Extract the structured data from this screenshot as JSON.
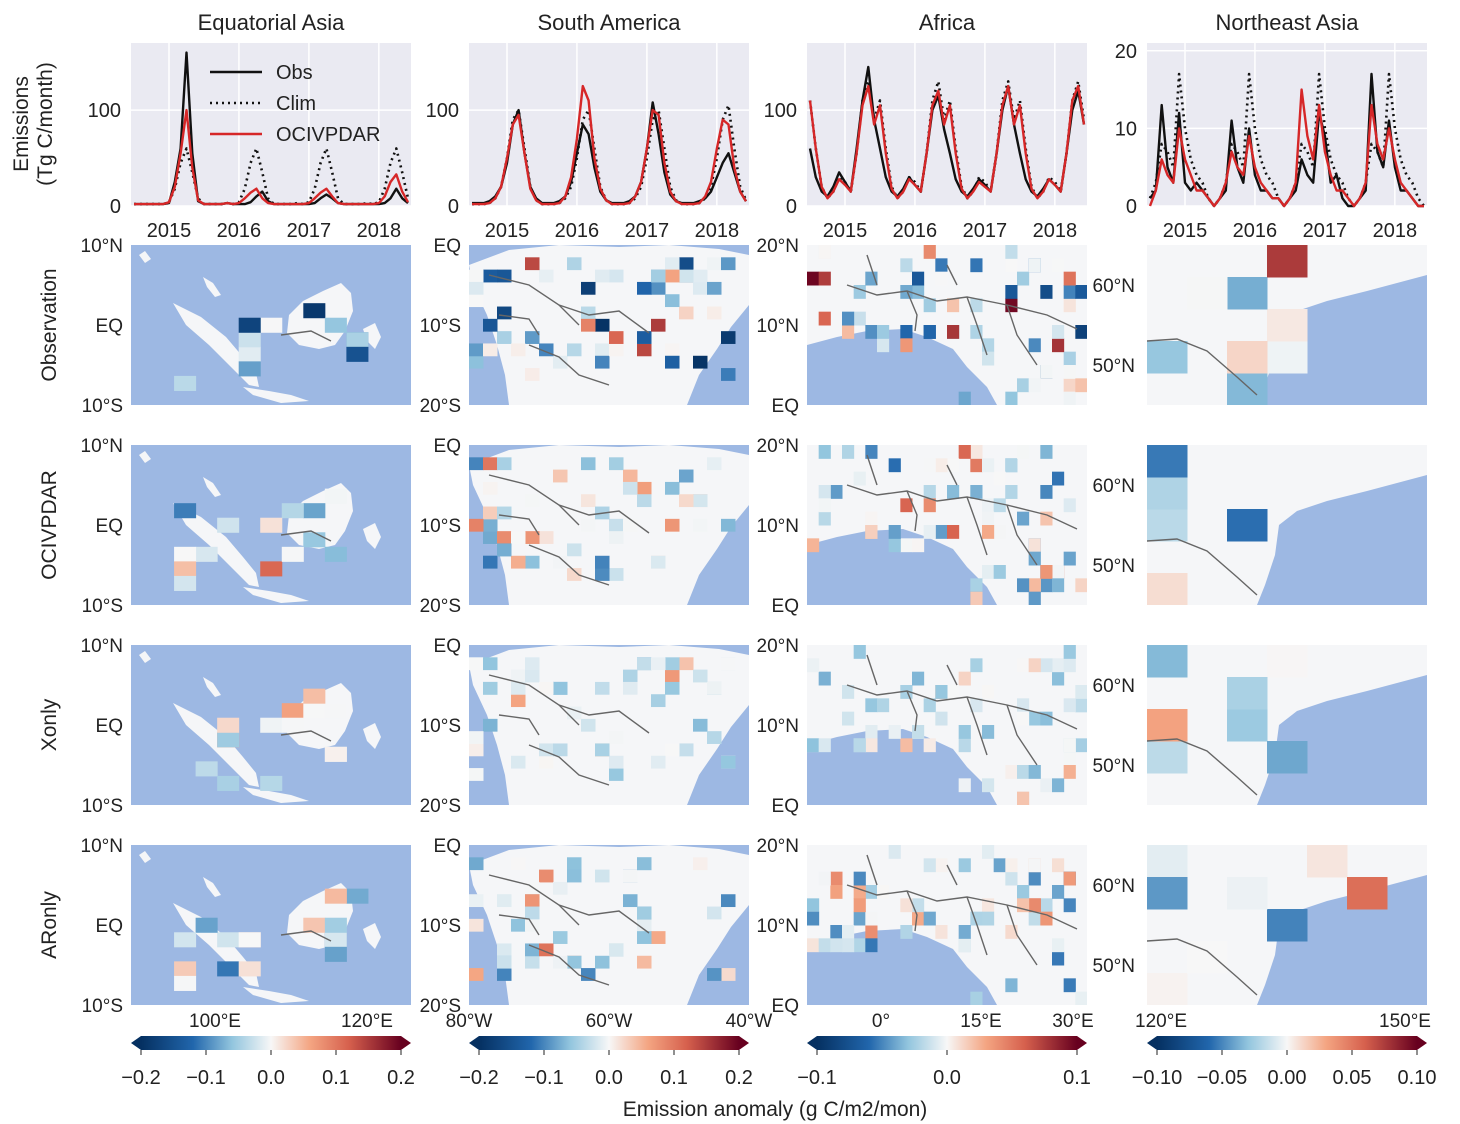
{
  "chart_data": {
    "type": "line",
    "panels": [
      {
        "title": "Equatorial Asia",
        "ylabel": "Emissions\n(Tg C/month)",
        "yticks": [
          0,
          100
        ],
        "ylim": [
          0,
          170
        ],
        "xticks": [
          "2015",
          "2016",
          "2017",
          "2018"
        ],
        "legend": "top-left",
        "series": [
          {
            "name": "Obs",
            "color": "#111111",
            "style": "solid",
            "values": [
              2,
              2,
              2,
              2,
              2,
              2,
              3,
              25,
              60,
              160,
              55,
              5,
              2,
              2,
              2,
              2,
              3,
              2,
              2,
              2,
              4,
              10,
              15,
              5,
              2,
              2,
              2,
              2,
              2,
              2,
              2,
              3,
              8,
              12,
              8,
              3,
              2,
              2,
              2,
              2,
              2,
              2,
              2,
              3,
              8,
              18,
              8,
              3
            ]
          },
          {
            "name": "Clim",
            "color": "#111111",
            "style": "dotted",
            "values": [
              2,
              2,
              2,
              2,
              2,
              2,
              4,
              18,
              45,
              60,
              35,
              8,
              2,
              2,
              2,
              2,
              3,
              2,
              4,
              18,
              45,
              60,
              35,
              8,
              2,
              2,
              2,
              2,
              3,
              2,
              4,
              18,
              45,
              60,
              35,
              8,
              2,
              2,
              2,
              2,
              3,
              2,
              4,
              18,
              45,
              60,
              35,
              8
            ]
          },
          {
            "name": "OCIVPDAR",
            "color": "#d62728",
            "style": "solid",
            "values": [
              2,
              2,
              2,
              2,
              2,
              2,
              4,
              20,
              55,
              100,
              40,
              6,
              2,
              2,
              2,
              2,
              3,
              2,
              3,
              8,
              14,
              18,
              8,
              3,
              2,
              2,
              2,
              2,
              2,
              2,
              3,
              8,
              14,
              18,
              10,
              3,
              2,
              2,
              2,
              2,
              2,
              2,
              3,
              10,
              25,
              33,
              15,
              4
            ]
          }
        ]
      },
      {
        "title": "South America",
        "ylabel": "",
        "yticks": [
          0,
          100
        ],
        "ylim": [
          0,
          170
        ],
        "xticks": [
          "2015",
          "2016",
          "2017",
          "2018"
        ],
        "legend": "",
        "series": [
          {
            "name": "",
            "color": "#111111",
            "style": "solid",
            "values": [
              3,
              3,
              3,
              5,
              10,
              20,
              45,
              85,
              100,
              55,
              20,
              8,
              3,
              3,
              3,
              5,
              10,
              25,
              55,
              85,
              75,
              40,
              15,
              6,
              3,
              3,
              3,
              5,
              10,
              25,
              60,
              108,
              75,
              35,
              12,
              5,
              3,
              3,
              3,
              5,
              8,
              15,
              30,
              45,
              55,
              35,
              15,
              5
            ]
          },
          {
            "name": "",
            "color": "#111111",
            "style": "dotted",
            "values": [
              2,
              2,
              2,
              3,
              8,
              20,
              50,
              90,
              100,
              60,
              20,
              6,
              2,
              2,
              2,
              3,
              8,
              20,
              50,
              90,
              100,
              60,
              20,
              6,
              2,
              2,
              2,
              3,
              8,
              20,
              50,
              90,
              100,
              60,
              20,
              6,
              2,
              2,
              2,
              3,
              8,
              20,
              50,
              90,
              105,
              60,
              20,
              6
            ]
          },
          {
            "name": "",
            "color": "#d62728",
            "style": "solid",
            "values": [
              2,
              2,
              2,
              3,
              8,
              20,
              50,
              85,
              95,
              55,
              18,
              6,
              2,
              2,
              2,
              3,
              10,
              30,
              70,
              125,
              110,
              50,
              18,
              6,
              2,
              2,
              2,
              3,
              10,
              25,
              60,
              100,
              95,
              45,
              15,
              5,
              2,
              2,
              2,
              3,
              10,
              25,
              60,
              90,
              85,
              40,
              15,
              5
            ]
          }
        ]
      },
      {
        "title": "Africa",
        "ylabel": "",
        "yticks": [
          0,
          100
        ],
        "ylim": [
          0,
          170
        ],
        "xticks": [
          "2015",
          "2016",
          "2017",
          "2018"
        ],
        "legend": "",
        "series": [
          {
            "name": "",
            "color": "#111111",
            "style": "solid",
            "values": [
              60,
              30,
              15,
              10,
              20,
              35,
              25,
              15,
              60,
              110,
              145,
              90,
              60,
              30,
              15,
              10,
              18,
              30,
              22,
              15,
              55,
              100,
              115,
              80,
              55,
              28,
              15,
              10,
              18,
              28,
              22,
              15,
              55,
              100,
              125,
              85,
              55,
              28,
              15,
              10,
              18,
              28,
              22,
              15,
              55,
              100,
              120,
              85
            ]
          },
          {
            "name": "",
            "color": "#111111",
            "style": "dotted",
            "values": [
              110,
              60,
              20,
              8,
              15,
              30,
              25,
              15,
              55,
              110,
              130,
              90,
              110,
              60,
              20,
              8,
              15,
              30,
              25,
              15,
              55,
              110,
              130,
              90,
              110,
              60,
              20,
              8,
              15,
              30,
              25,
              15,
              55,
              110,
              130,
              90,
              110,
              60,
              20,
              8,
              15,
              30,
              25,
              15,
              55,
              110,
              130,
              90
            ]
          },
          {
            "name": "",
            "color": "#d62728",
            "style": "solid",
            "values": [
              110,
              60,
              20,
              8,
              15,
              28,
              22,
              15,
              55,
              105,
              125,
              85,
              105,
              55,
              18,
              8,
              15,
              28,
              22,
              15,
              55,
              105,
              120,
              85,
              105,
              55,
              18,
              8,
              15,
              25,
              20,
              15,
              55,
              105,
              125,
              85,
              105,
              55,
              18,
              8,
              15,
              28,
              22,
              15,
              55,
              110,
              125,
              85
            ]
          }
        ]
      },
      {
        "title": "Northeast Asia",
        "ylabel": "",
        "yticks": [
          0,
          10,
          20
        ],
        "ylim": [
          0,
          21
        ],
        "xticks": [
          "2015",
          "2016",
          "2017",
          "2018"
        ],
        "legend": "",
        "series": [
          {
            "name": "",
            "color": "#111111",
            "style": "solid",
            "values": [
              1,
              2,
              13,
              5,
              3,
              12,
              3,
              2,
              3,
              2,
              1,
              0,
              1,
              2,
              11,
              5,
              3,
              10,
              4,
              2,
              2,
              1,
              1,
              0,
              1,
              2,
              6,
              4,
              3,
              12,
              9,
              3,
              4,
              1,
              0,
              0,
              1,
              2,
              17,
              7,
              5,
              11,
              5,
              2,
              2,
              1,
              0,
              0
            ]
          },
          {
            "name": "",
            "color": "#111111",
            "style": "dotted",
            "values": [
              1,
              3,
              8,
              7,
              5,
              17,
              10,
              6,
              4,
              3,
              1,
              0,
              1,
              3,
              8,
              7,
              5,
              17,
              10,
              6,
              4,
              3,
              1,
              0,
              1,
              3,
              8,
              7,
              5,
              17,
              10,
              6,
              4,
              3,
              1,
              0,
              1,
              3,
              8,
              7,
              5,
              17,
              10,
              6,
              4,
              3,
              1,
              0
            ]
          },
          {
            "name": "",
            "color": "#d62728",
            "style": "solid",
            "values": [
              0,
              2,
              6,
              4,
              3,
              10,
              6,
              4,
              2,
              2,
              1,
              0,
              1,
              3,
              7,
              5,
              4,
              9,
              5,
              3,
              2,
              1,
              1,
              0,
              1,
              3,
              15,
              9,
              6,
              13,
              7,
              4,
              2,
              2,
              1,
              0,
              1,
              3,
              13,
              8,
              6,
              10,
              6,
              3,
              2,
              1,
              0,
              0
            ]
          }
        ]
      }
    ]
  },
  "map_rows": [
    {
      "label": "Observation",
      "seed": 11,
      "intensity": 1.0
    },
    {
      "label": "OCIVPDAR",
      "seed": 23,
      "intensity": 0.6
    },
    {
      "label": "Xonly",
      "seed": 37,
      "intensity": 0.4
    },
    {
      "label": "ARonly",
      "seed": 51,
      "intensity": 0.55
    }
  ],
  "map_columns": [
    {
      "region": "Equatorial Asia",
      "lat_ticks": [
        "10°N",
        "EQ",
        "10°S"
      ],
      "lon_ticks": [
        "100°E",
        "120°E"
      ]
    },
    {
      "region": "South America",
      "lat_ticks": [
        "EQ",
        "10°S",
        "20°S"
      ],
      "lon_ticks": [
        "80°W",
        "60°W",
        "40°W"
      ]
    },
    {
      "region": "Africa",
      "lat_ticks": [
        "20°N",
        "10°N",
        "EQ"
      ],
      "lon_ticks": [
        "0°",
        "15°E",
        "30°E"
      ]
    },
    {
      "region": "Northeast Asia",
      "lat_ticks": [
        "60°N",
        "50°N"
      ],
      "lon_ticks": [
        "120°E",
        "150°E"
      ]
    }
  ],
  "colorbars": [
    {
      "ticks": [
        "−0.2",
        "−0.1",
        "0.0",
        "0.1",
        "0.2"
      ]
    },
    {
      "ticks": [
        "−0.2",
        "−0.1",
        "0.0",
        "0.1",
        "0.2"
      ]
    },
    {
      "ticks": [
        "−0.1",
        "0.0",
        "0.1"
      ]
    },
    {
      "ticks": [
        "−0.10",
        "−0.05",
        "0.00",
        "0.05",
        "0.10"
      ]
    }
  ],
  "colorbar_label": "Emission anomaly (g C/m2/mon)",
  "colors": {
    "ocean": "#9db8e3",
    "land": "#f5f6f8",
    "border": "#666666",
    "panel_bg": "#eaeaf2",
    "grid": "#ffffff",
    "cmap_neg": "#053061",
    "cmap_mid": "#f7f7f7",
    "cmap_pos": "#67001f"
  }
}
